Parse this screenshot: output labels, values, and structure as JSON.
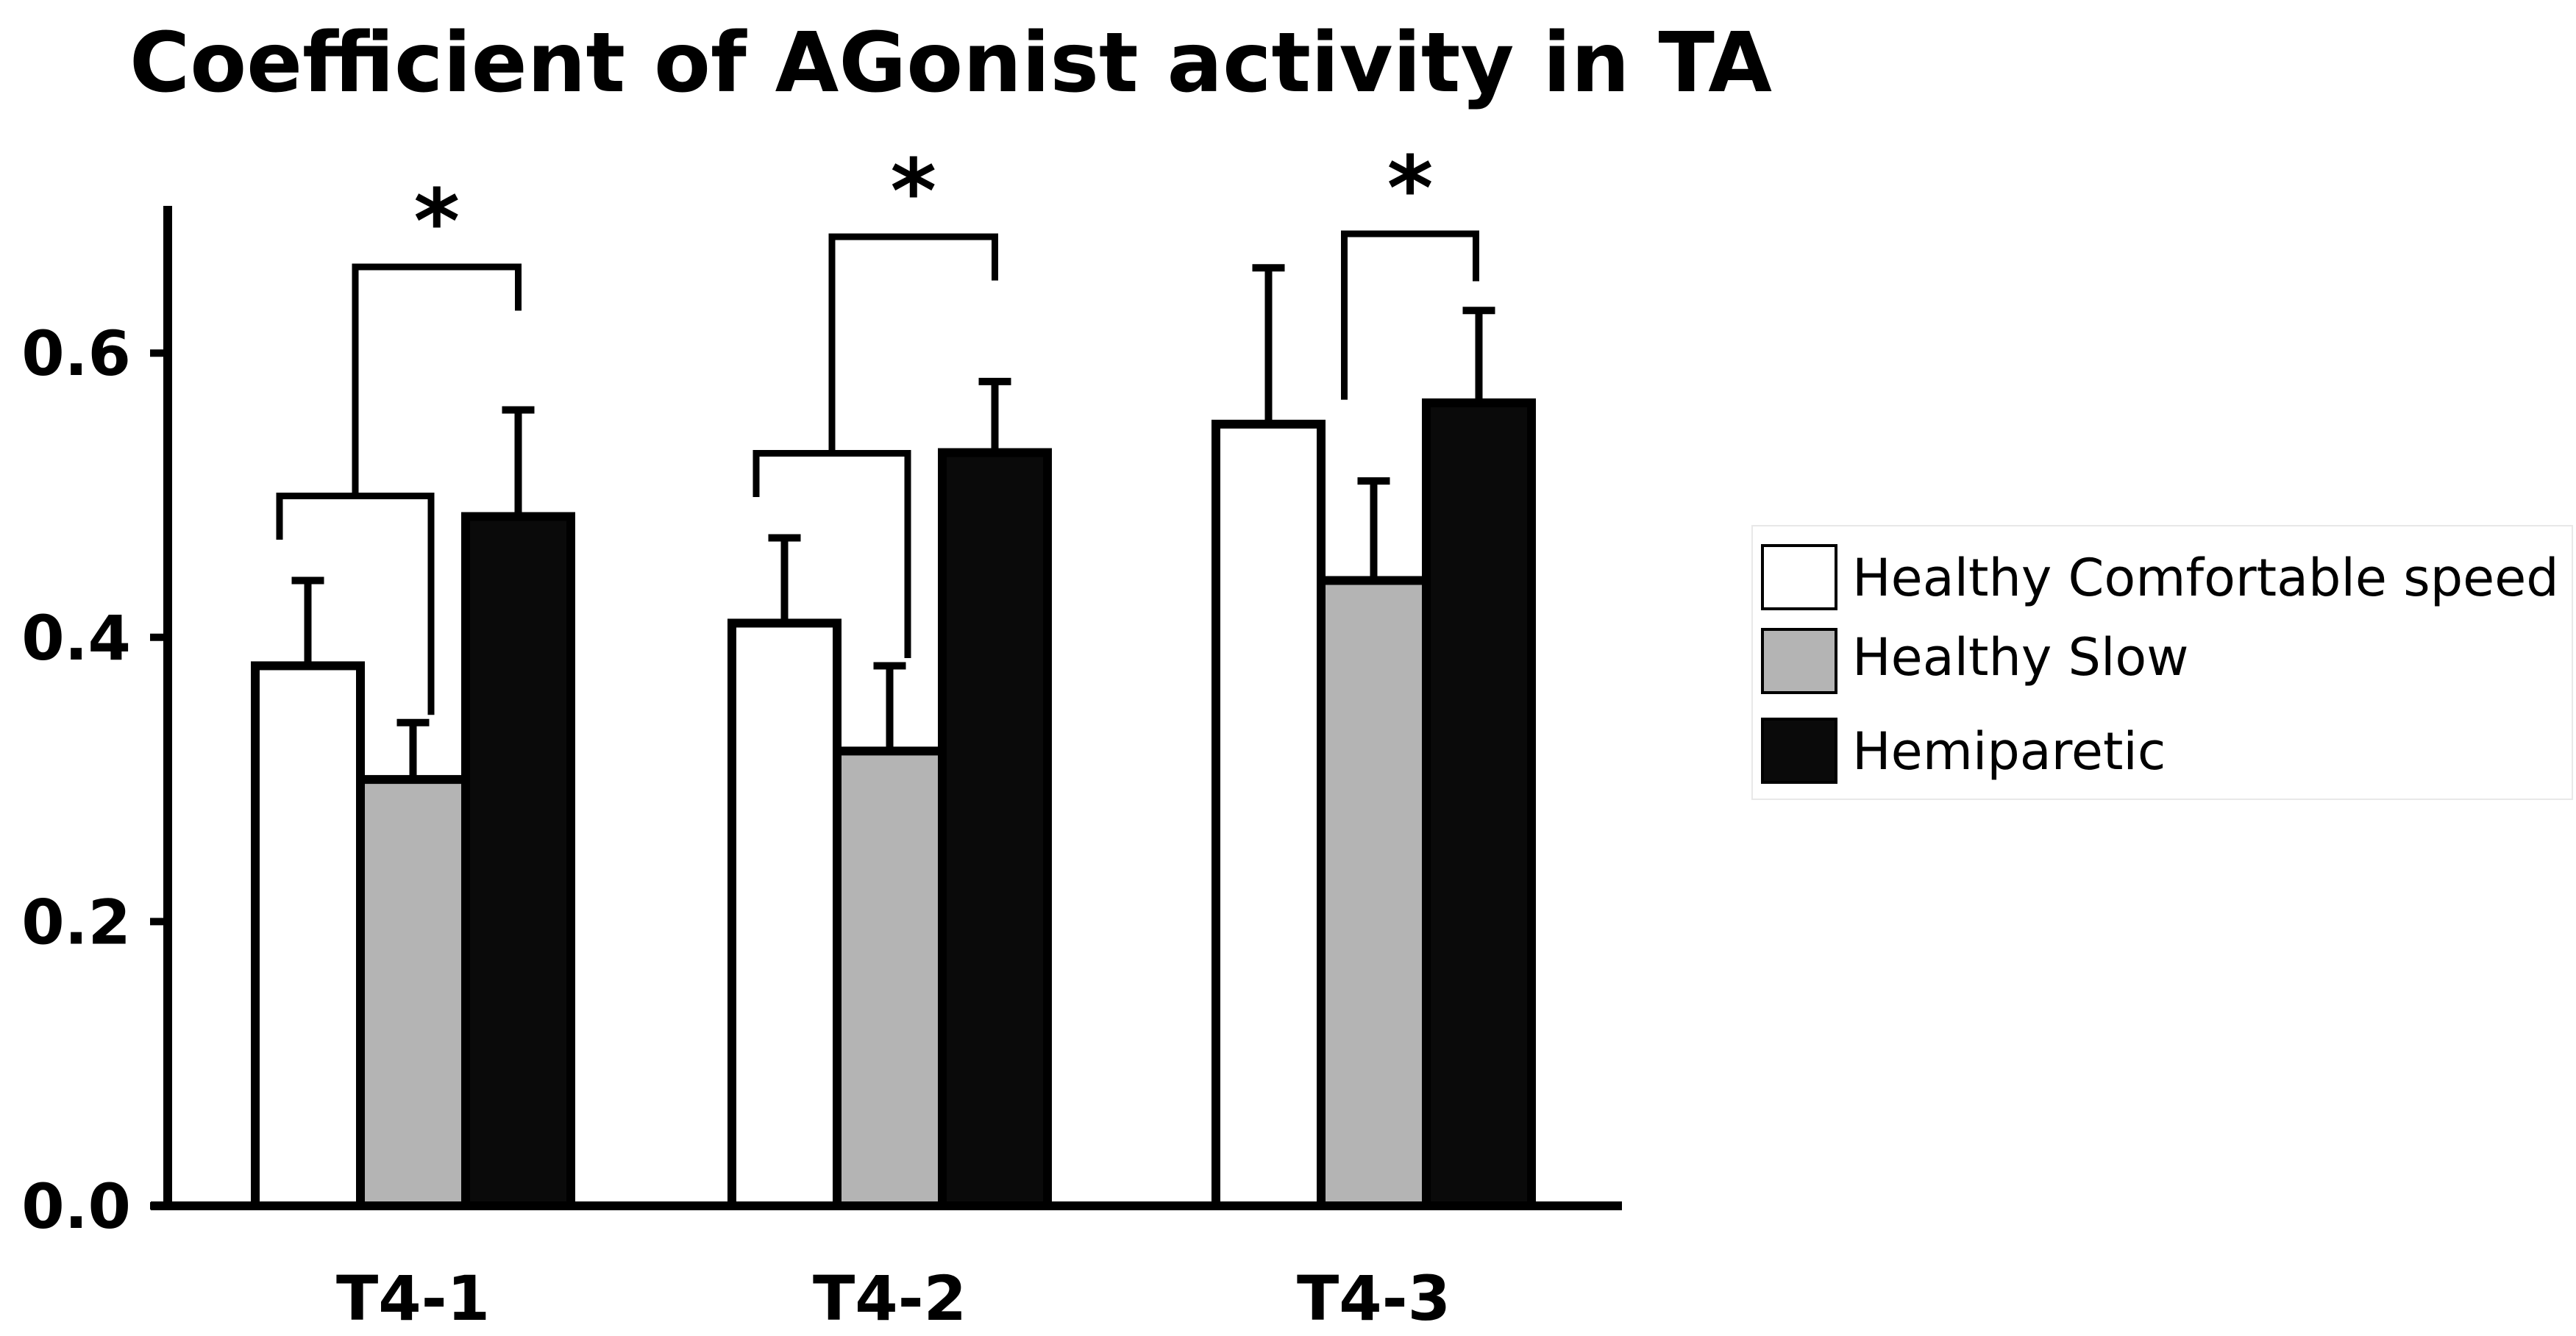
{
  "chart_data": {
    "type": "bar",
    "title": "Coefficient of AGonist activity in TA",
    "xlabel": "",
    "ylabel": "",
    "ylim": [
      0.0,
      0.7
    ],
    "yticks": [
      0.0,
      0.2,
      0.4,
      0.6
    ],
    "ytick_labels": [
      "0.0",
      "0.2",
      "0.4",
      "0.6"
    ],
    "categories": [
      "T4-1",
      "T4-2",
      "T4-3"
    ],
    "series": [
      {
        "name": "Healthy Comfortable speed",
        "color": "#ffffff",
        "values": [
          0.38,
          0.41,
          0.55
        ],
        "errors": [
          0.06,
          0.06,
          0.11
        ]
      },
      {
        "name": "Healthy Slow",
        "color": "#b4b4b4",
        "values": [
          0.3,
          0.32,
          0.44
        ],
        "errors": [
          0.04,
          0.06,
          0.07
        ]
      },
      {
        "name": "Hemiparetic",
        "color": "#0a0a0a",
        "values": [
          0.485,
          0.53,
          0.565
        ],
        "errors": [
          0.075,
          0.05,
          0.065
        ]
      }
    ],
    "significance": [
      {
        "category": "T4-1",
        "from": "Healthy Comfortable speed + Healthy Slow",
        "to": "Hemiparetic",
        "label": "*"
      },
      {
        "category": "T4-2",
        "from": "Healthy Comfortable speed + Healthy Slow",
        "to": "Hemiparetic",
        "label": "*"
      },
      {
        "category": "T4-3",
        "from": "Healthy Slow",
        "to": "Hemiparetic",
        "label": "*"
      }
    ],
    "grid": false,
    "legend_position": "right"
  }
}
